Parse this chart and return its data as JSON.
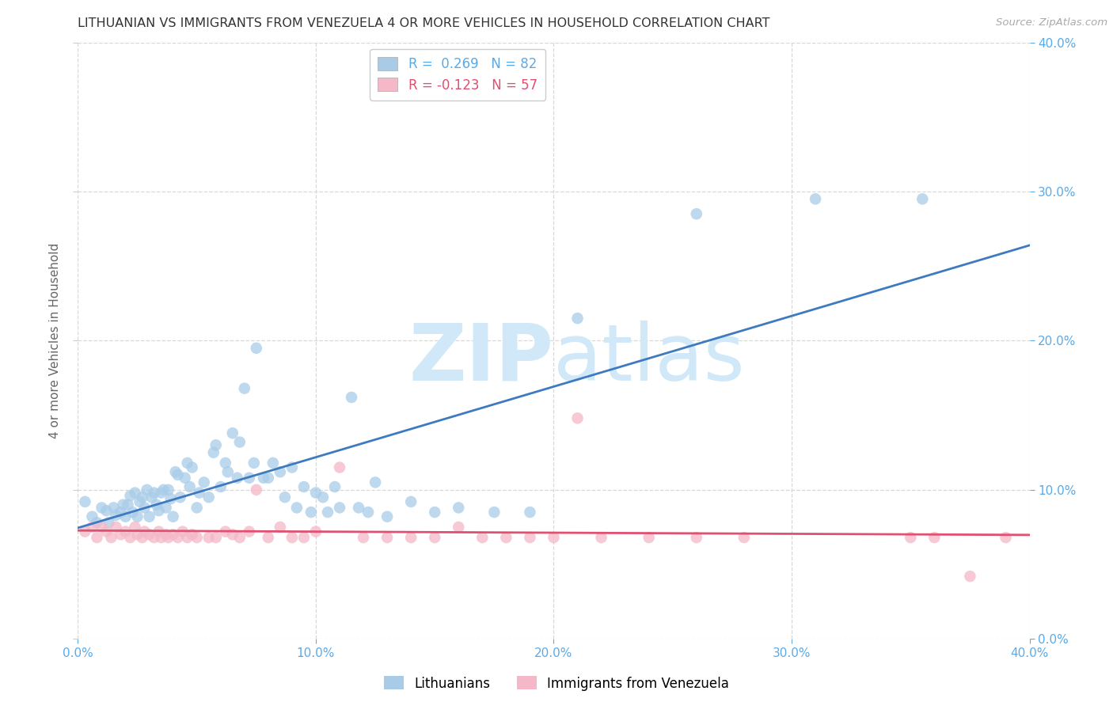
{
  "title": "LITHUANIAN VS IMMIGRANTS FROM VENEZUELA 4 OR MORE VEHICLES IN HOUSEHOLD CORRELATION CHART",
  "source": "Source: ZipAtlas.com",
  "ylabel": "4 or more Vehicles in Household",
  "xlim": [
    0.0,
    0.4
  ],
  "ylim": [
    0.0,
    0.4
  ],
  "xticks": [
    0.0,
    0.1,
    0.2,
    0.3,
    0.4
  ],
  "yticks": [
    0.0,
    0.1,
    0.2,
    0.3,
    0.4
  ],
  "xticklabels": [
    "0.0%",
    "10.0%",
    "20.0%",
    "30.0%",
    "40.0%"
  ],
  "right_yticklabels": [
    "0.0%",
    "10.0%",
    "20.0%",
    "30.0%",
    "40.0%"
  ],
  "legend_labels": [
    "Lithuanians",
    "Immigrants from Venezuela"
  ],
  "legend_R": [
    0.269,
    -0.123
  ],
  "legend_N": [
    82,
    57
  ],
  "blue_color": "#a8cce8",
  "pink_color": "#f4b8c8",
  "blue_line_color": "#3d7abf",
  "pink_line_color": "#e05070",
  "axis_tick_color": "#5aaae8",
  "watermark_color": "#d0e8f8",
  "blue_scatter_x": [
    0.003,
    0.006,
    0.008,
    0.01,
    0.012,
    0.013,
    0.015,
    0.016,
    0.018,
    0.019,
    0.02,
    0.021,
    0.022,
    0.023,
    0.024,
    0.025,
    0.026,
    0.027,
    0.028,
    0.029,
    0.03,
    0.031,
    0.032,
    0.033,
    0.034,
    0.035,
    0.036,
    0.037,
    0.038,
    0.039,
    0.04,
    0.041,
    0.042,
    0.043,
    0.045,
    0.046,
    0.047,
    0.048,
    0.05,
    0.051,
    0.053,
    0.055,
    0.057,
    0.058,
    0.06,
    0.062,
    0.063,
    0.065,
    0.067,
    0.068,
    0.07,
    0.072,
    0.074,
    0.075,
    0.078,
    0.08,
    0.082,
    0.085,
    0.087,
    0.09,
    0.092,
    0.095,
    0.098,
    0.1,
    0.103,
    0.105,
    0.108,
    0.11,
    0.115,
    0.118,
    0.122,
    0.125,
    0.13,
    0.14,
    0.15,
    0.16,
    0.175,
    0.19,
    0.21,
    0.26,
    0.31,
    0.355
  ],
  "blue_scatter_y": [
    0.092,
    0.082,
    0.078,
    0.088,
    0.086,
    0.078,
    0.088,
    0.083,
    0.085,
    0.09,
    0.082,
    0.09,
    0.096,
    0.085,
    0.098,
    0.082,
    0.092,
    0.095,
    0.088,
    0.1,
    0.082,
    0.095,
    0.098,
    0.09,
    0.086,
    0.098,
    0.1,
    0.088,
    0.1,
    0.094,
    0.082,
    0.112,
    0.11,
    0.095,
    0.108,
    0.118,
    0.102,
    0.115,
    0.088,
    0.098,
    0.105,
    0.095,
    0.125,
    0.13,
    0.102,
    0.118,
    0.112,
    0.138,
    0.108,
    0.132,
    0.168,
    0.108,
    0.118,
    0.195,
    0.108,
    0.108,
    0.118,
    0.112,
    0.095,
    0.115,
    0.088,
    0.102,
    0.085,
    0.098,
    0.095,
    0.085,
    0.102,
    0.088,
    0.162,
    0.088,
    0.085,
    0.105,
    0.082,
    0.092,
    0.085,
    0.088,
    0.085,
    0.085,
    0.215,
    0.285,
    0.295,
    0.295
  ],
  "pink_scatter_x": [
    0.003,
    0.006,
    0.008,
    0.01,
    0.012,
    0.014,
    0.016,
    0.018,
    0.02,
    0.022,
    0.024,
    0.025,
    0.027,
    0.028,
    0.03,
    0.032,
    0.034,
    0.035,
    0.037,
    0.038,
    0.04,
    0.042,
    0.044,
    0.046,
    0.048,
    0.05,
    0.055,
    0.058,
    0.062,
    0.065,
    0.068,
    0.072,
    0.075,
    0.08,
    0.085,
    0.09,
    0.095,
    0.1,
    0.11,
    0.12,
    0.13,
    0.14,
    0.15,
    0.16,
    0.17,
    0.18,
    0.19,
    0.2,
    0.21,
    0.22,
    0.24,
    0.26,
    0.28,
    0.35,
    0.36,
    0.375,
    0.39
  ],
  "pink_scatter_y": [
    0.072,
    0.075,
    0.068,
    0.075,
    0.072,
    0.068,
    0.075,
    0.07,
    0.072,
    0.068,
    0.075,
    0.07,
    0.068,
    0.072,
    0.07,
    0.068,
    0.072,
    0.068,
    0.07,
    0.068,
    0.07,
    0.068,
    0.072,
    0.068,
    0.07,
    0.068,
    0.068,
    0.068,
    0.072,
    0.07,
    0.068,
    0.072,
    0.1,
    0.068,
    0.075,
    0.068,
    0.068,
    0.072,
    0.115,
    0.068,
    0.068,
    0.068,
    0.068,
    0.075,
    0.068,
    0.068,
    0.068,
    0.068,
    0.148,
    0.068,
    0.068,
    0.068,
    0.068,
    0.068,
    0.068,
    0.042,
    0.068
  ]
}
